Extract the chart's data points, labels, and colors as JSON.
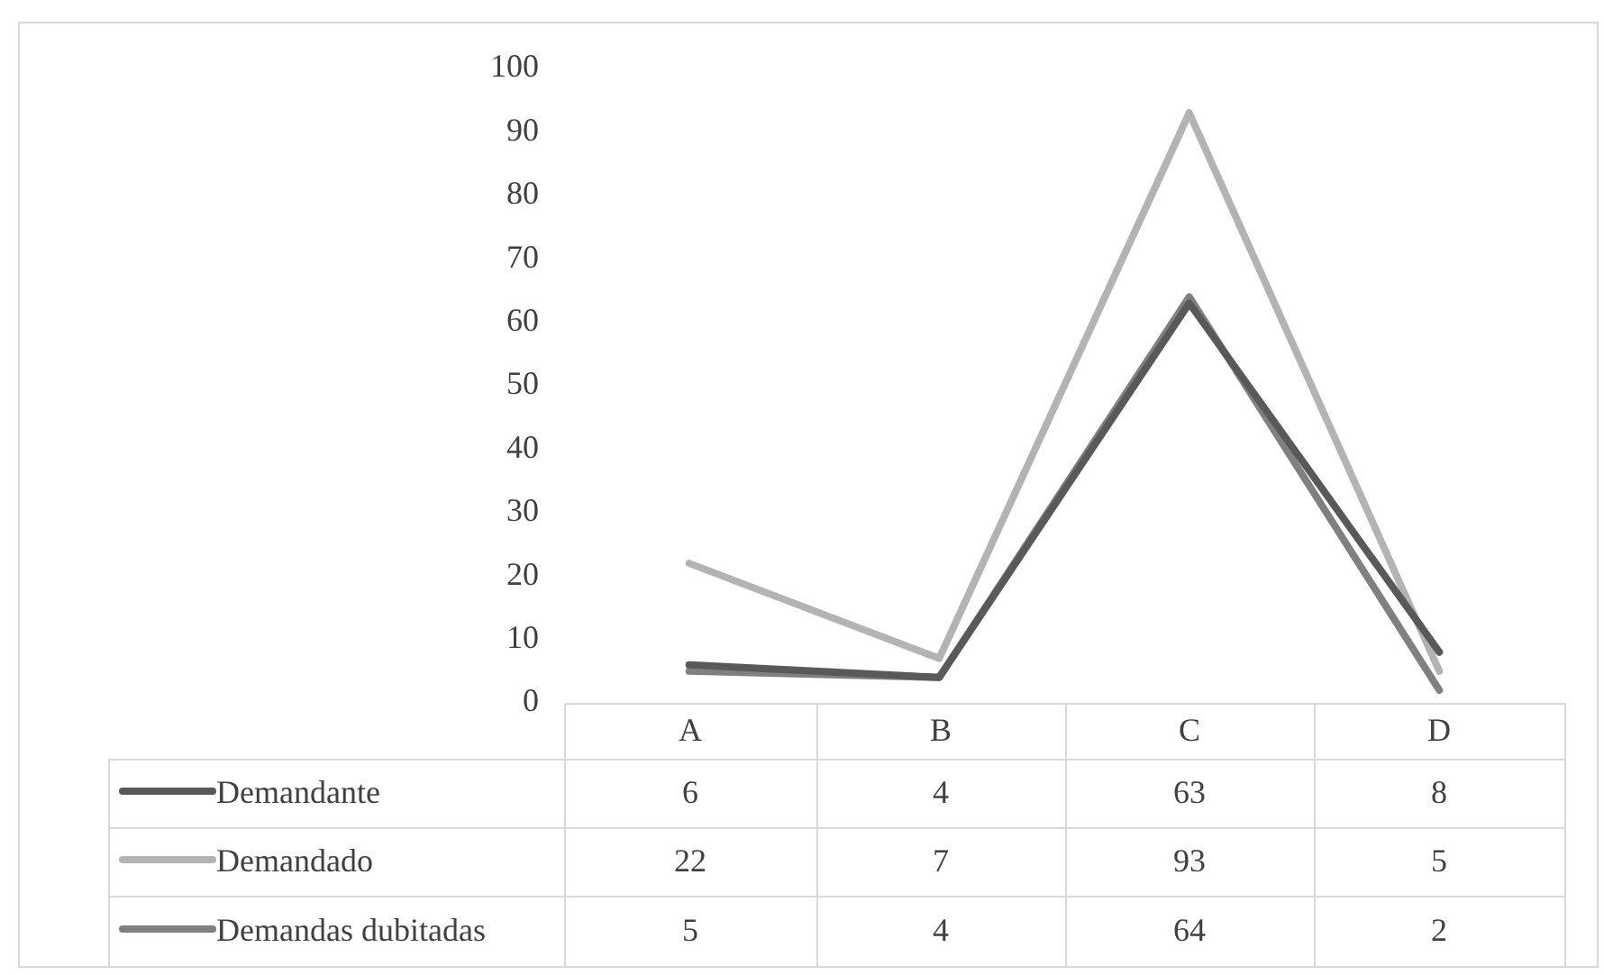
{
  "chart_data": {
    "type": "line",
    "categories": [
      "A",
      "B",
      "C",
      "D"
    ],
    "series": [
      {
        "name": "Demandante",
        "color": "#595959",
        "values": [
          6,
          4,
          63,
          8
        ]
      },
      {
        "name": "Demandado",
        "color": "#b3b3b3",
        "values": [
          22,
          7,
          93,
          5
        ]
      },
      {
        "name": "Demandas dubitadas",
        "color": "#808080",
        "values": [
          5,
          4,
          64,
          2
        ]
      }
    ],
    "ylim": [
      0,
      100
    ],
    "yticks": [
      0,
      10,
      20,
      30,
      40,
      50,
      60,
      70,
      80,
      90,
      100
    ],
    "grid": false,
    "legend": "bottom",
    "data_labels": true,
    "marker": "none",
    "line_style": "solid"
  }
}
